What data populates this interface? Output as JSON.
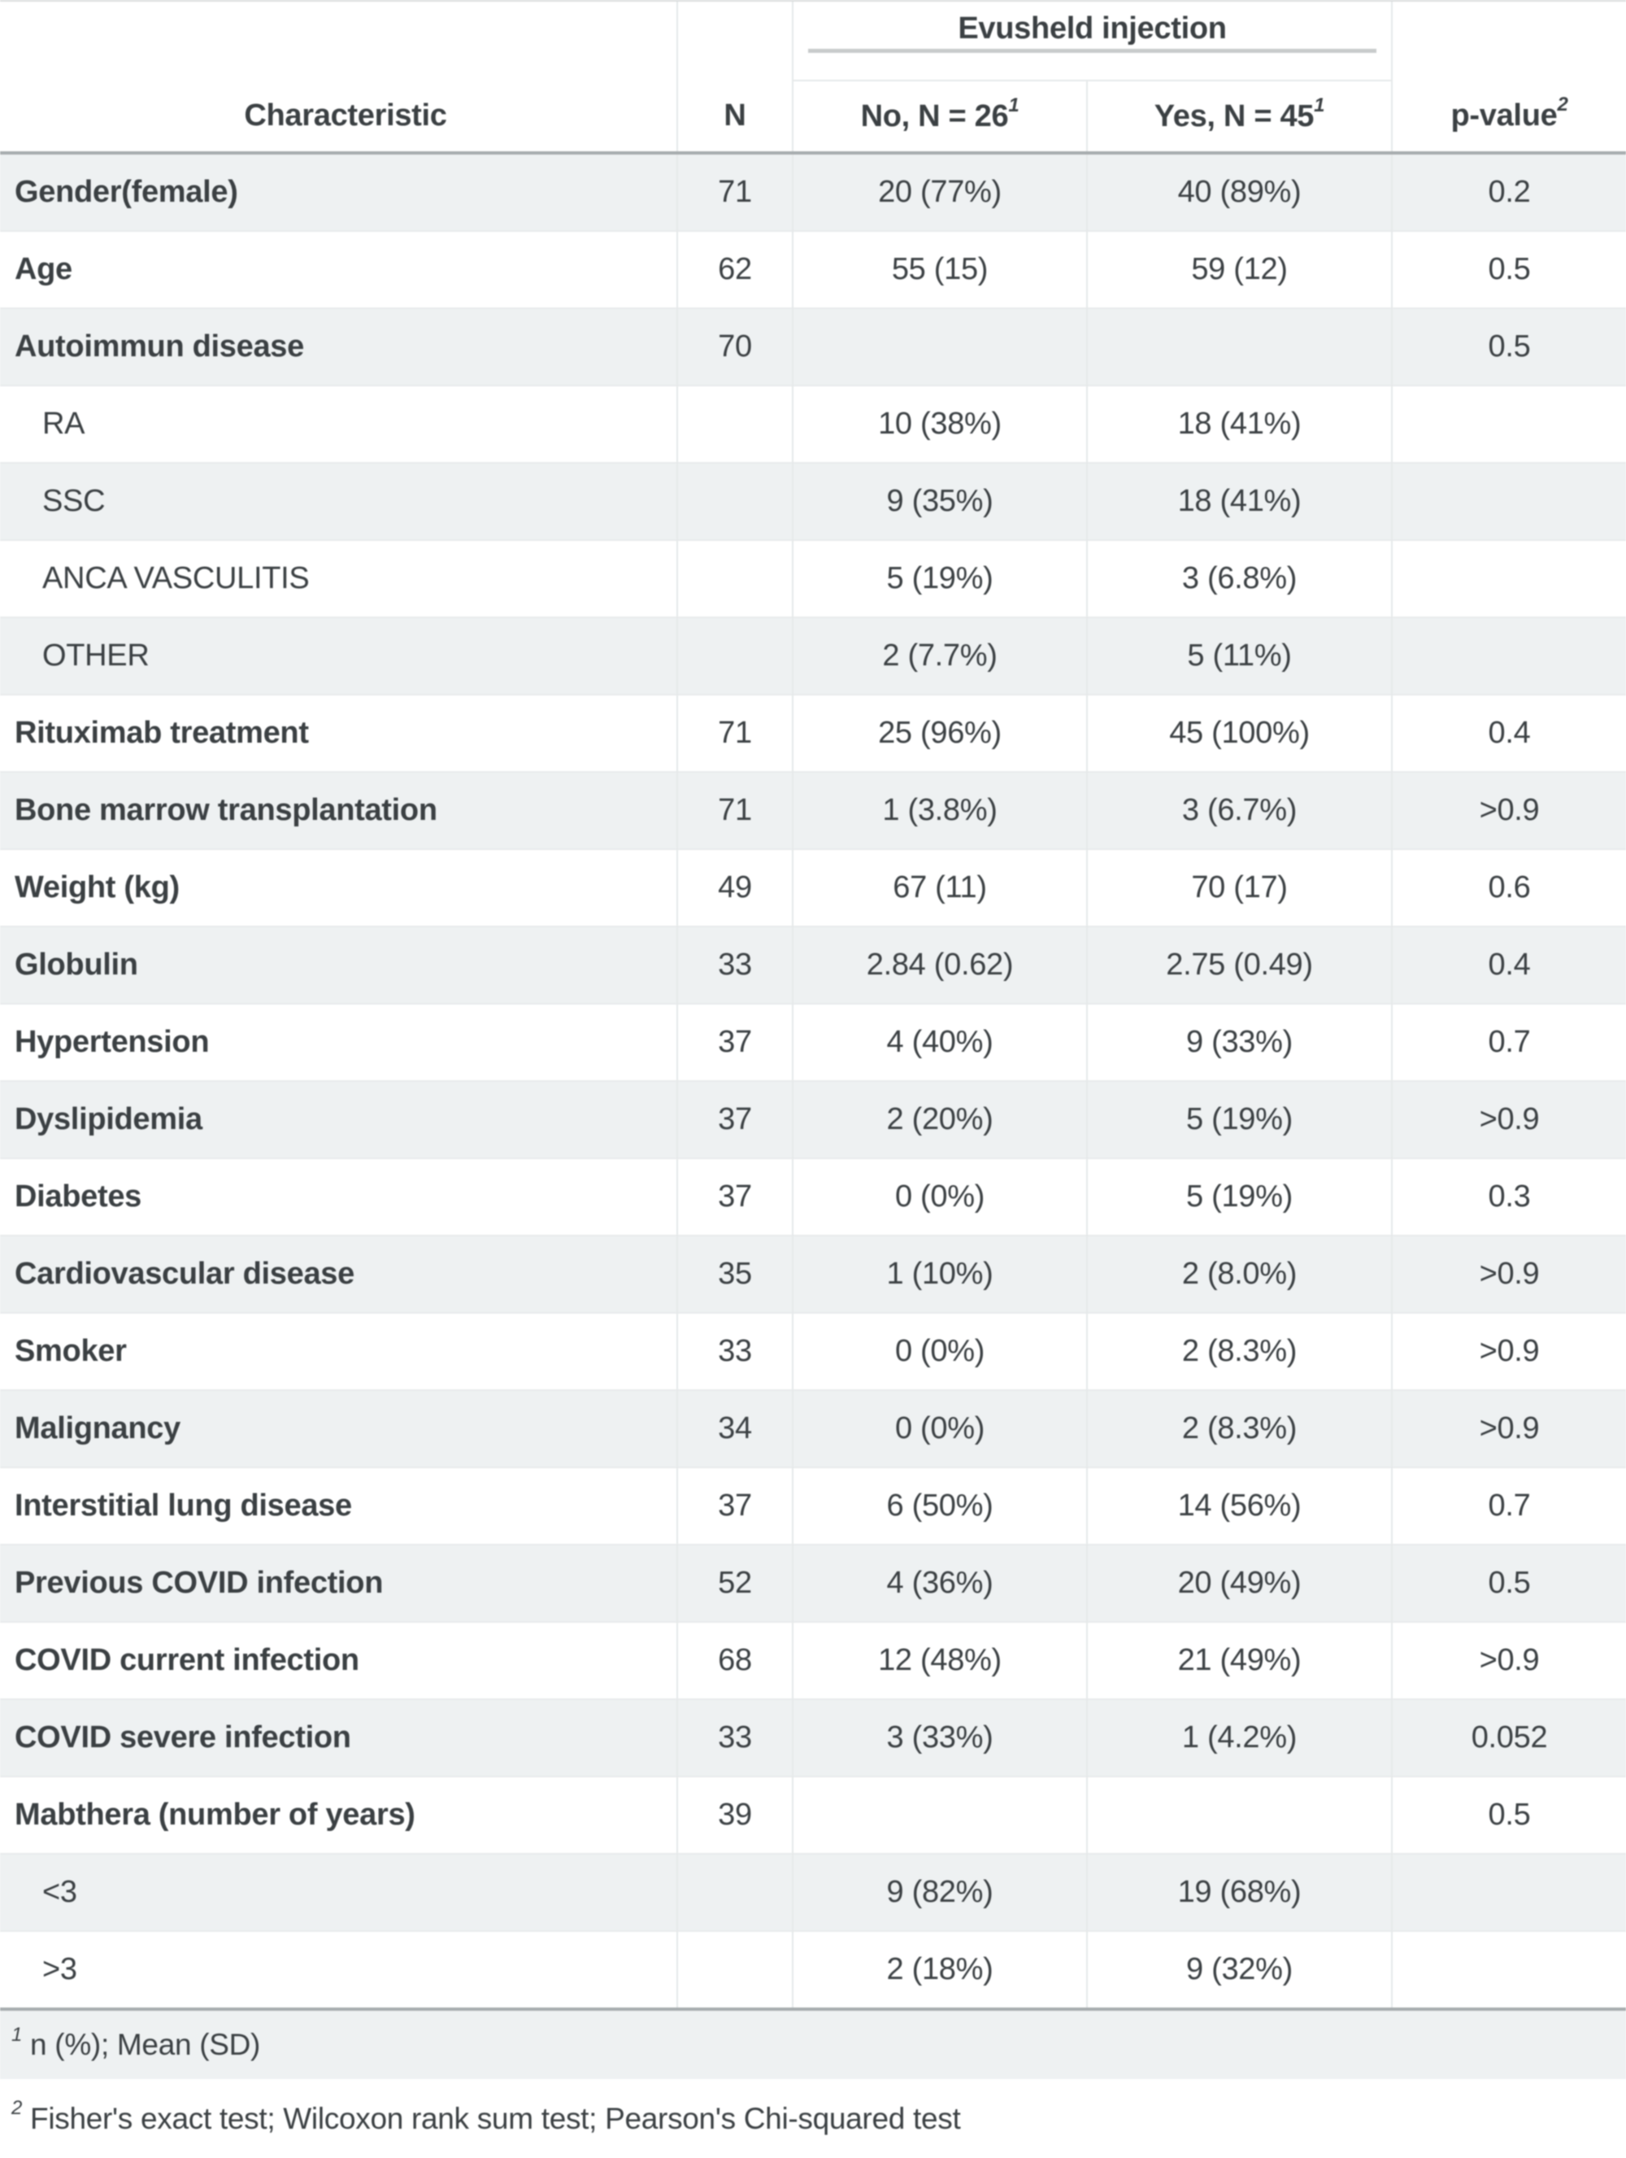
{
  "table": {
    "spanner": {
      "label": "Evusheld injection"
    },
    "columns": {
      "characteristic": "Characteristic",
      "n": "N",
      "no": {
        "text": "No, N = 26",
        "sup": "1"
      },
      "yes": {
        "text": "Yes, N = 45",
        "sup": "1"
      },
      "p": {
        "text": "p-value",
        "sup": "2"
      }
    },
    "rows": [
      {
        "label": "Gender(female)",
        "indent": false,
        "n": "71",
        "no": "20 (77%)",
        "yes": "40 (89%)",
        "p": "0.2"
      },
      {
        "label": "Age",
        "indent": false,
        "n": "62",
        "no": "55 (15)",
        "yes": "59 (12)",
        "p": "0.5"
      },
      {
        "label": "Autoimmun disease",
        "indent": false,
        "n": "70",
        "no": "",
        "yes": "",
        "p": "0.5"
      },
      {
        "label": "RA",
        "indent": true,
        "n": "",
        "no": "10 (38%)",
        "yes": "18 (41%)",
        "p": ""
      },
      {
        "label": "SSC",
        "indent": true,
        "n": "",
        "no": "9 (35%)",
        "yes": "18 (41%)",
        "p": ""
      },
      {
        "label": "ANCA VASCULITIS",
        "indent": true,
        "n": "",
        "no": "5 (19%)",
        "yes": "3 (6.8%)",
        "p": ""
      },
      {
        "label": "OTHER",
        "indent": true,
        "n": "",
        "no": "2 (7.7%)",
        "yes": "5 (11%)",
        "p": ""
      },
      {
        "label": "Rituximab treatment",
        "indent": false,
        "n": "71",
        "no": "25 (96%)",
        "yes": "45 (100%)",
        "p": "0.4"
      },
      {
        "label": "Bone marrow transplantation",
        "indent": false,
        "n": "71",
        "no": "1 (3.8%)",
        "yes": "3 (6.7%)",
        "p": ">0.9"
      },
      {
        "label": "Weight (kg)",
        "indent": false,
        "n": "49",
        "no": "67 (11)",
        "yes": "70 (17)",
        "p": "0.6"
      },
      {
        "label": "Globulin",
        "indent": false,
        "n": "33",
        "no": "2.84 (0.62)",
        "yes": "2.75 (0.49)",
        "p": "0.4"
      },
      {
        "label": "Hypertension",
        "indent": false,
        "n": "37",
        "no": "4 (40%)",
        "yes": "9 (33%)",
        "p": "0.7"
      },
      {
        "label": "Dyslipidemia",
        "indent": false,
        "n": "37",
        "no": "2 (20%)",
        "yes": "5 (19%)",
        "p": ">0.9"
      },
      {
        "label": "Diabetes",
        "indent": false,
        "n": "37",
        "no": "0 (0%)",
        "yes": "5 (19%)",
        "p": "0.3"
      },
      {
        "label": "Cardiovascular disease",
        "indent": false,
        "n": "35",
        "no": "1 (10%)",
        "yes": "2 (8.0%)",
        "p": ">0.9"
      },
      {
        "label": "Smoker",
        "indent": false,
        "n": "33",
        "no": "0 (0%)",
        "yes": "2 (8.3%)",
        "p": ">0.9"
      },
      {
        "label": "Malignancy",
        "indent": false,
        "n": "34",
        "no": "0 (0%)",
        "yes": "2 (8.3%)",
        "p": ">0.9"
      },
      {
        "label": "Interstitial lung disease",
        "indent": false,
        "n": "37",
        "no": "6 (50%)",
        "yes": "14 (56%)",
        "p": "0.7"
      },
      {
        "label": "Previous COVID infection",
        "indent": false,
        "n": "52",
        "no": "4 (36%)",
        "yes": "20 (49%)",
        "p": "0.5"
      },
      {
        "label": "COVID current infection",
        "indent": false,
        "n": "68",
        "no": "12 (48%)",
        "yes": "21 (49%)",
        "p": ">0.9"
      },
      {
        "label": "COVID severe infection",
        "indent": false,
        "n": "33",
        "no": "3 (33%)",
        "yes": "1 (4.2%)",
        "p": "0.052"
      },
      {
        "label": "Mabthera (number of years)",
        "indent": false,
        "n": "39",
        "no": "",
        "yes": "",
        "p": "0.5"
      },
      {
        "label": "<3",
        "indent": true,
        "n": "",
        "no": "9 (82%)",
        "yes": "19 (68%)",
        "p": ""
      },
      {
        "label": ">3",
        "indent": true,
        "n": "",
        "no": "2 (18%)",
        "yes": "9 (32%)",
        "p": ""
      }
    ],
    "footnotes": [
      {
        "sup": "1",
        "text": "n (%); Mean (SD)"
      },
      {
        "sup": "2",
        "text": "Fisher's exact test; Wilcoxon rank sum test; Pearson's Chi-squared test"
      }
    ],
    "colors": {
      "stripe": "#eef1f2",
      "text": "#3b4043",
      "rule_dark": "#a7acae",
      "rule_spanner": "#c8cbcc",
      "rule_light": "#e6e9ea"
    }
  }
}
